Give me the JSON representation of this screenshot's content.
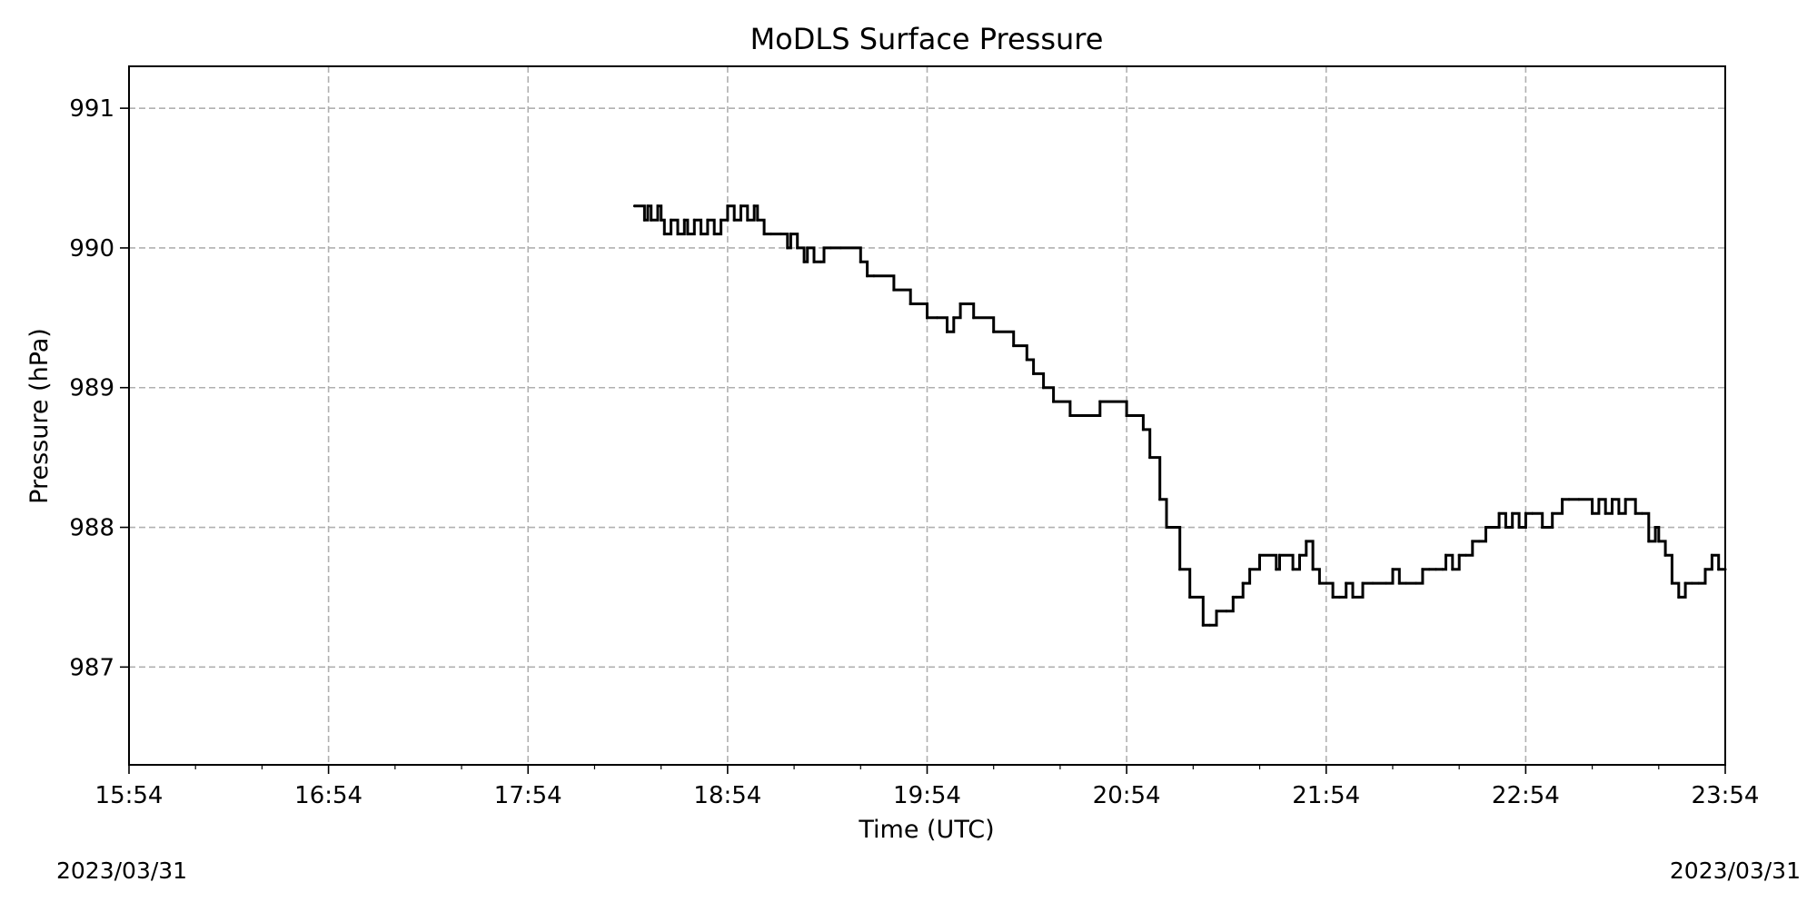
{
  "chart_data": {
    "type": "line",
    "title": "MoDLS Surface Pressure",
    "xlabel": "Time (UTC)",
    "ylabel": "Pressure (hPa)",
    "x_ticks": [
      "15:54",
      "16:54",
      "17:54",
      "18:54",
      "19:54",
      "20:54",
      "21:54",
      "22:54",
      "23:54"
    ],
    "y_ticks": [
      987,
      988,
      989,
      990,
      991
    ],
    "date_left": "2023/03/31",
    "date_right": "2023/03/31",
    "xlim_minutes_after_1554": [
      0,
      480
    ],
    "ylim": [
      986.3,
      991.3
    ],
    "grid": true,
    "line_color": "#000000",
    "grid_color": "#b0b0b0",
    "series": [
      {
        "step": "post",
        "x_minutes_after_1554": [
          152,
          155,
          156,
          157,
          159,
          160,
          161,
          163,
          165,
          167,
          168,
          170,
          172,
          174,
          176,
          178,
          180,
          182,
          184,
          186,
          188,
          189,
          191,
          193,
          196,
          198,
          199,
          201,
          203,
          204,
          206,
          208,
          209,
          211,
          214,
          220,
          222,
          224,
          230,
          235,
          240,
          243,
          246,
          248,
          250,
          254,
          260,
          266,
          270,
          272,
          275,
          278,
          283,
          286,
          292,
          300,
          305,
          307,
          310,
          312,
          316,
          319,
          323,
          325,
          327,
          330,
          332,
          333,
          335,
          337,
          340,
          345,
          346,
          350,
          352,
          354,
          356,
          358,
          360,
          362,
          364,
          366,
          368,
          371,
          374,
          378,
          380,
          382,
          384,
          387,
          389,
          391,
          393,
          395,
          396,
          398,
          400,
          402,
          404,
          406,
          408,
          410,
          412,
          414,
          416,
          418,
          420,
          422,
          425,
          428,
          431,
          433,
          436,
          440,
          442,
          444,
          446,
          448,
          450,
          453,
          455,
          457,
          459,
          460,
          462,
          464,
          466,
          468,
          470,
          472,
          474,
          476,
          478,
          480
        ],
        "y_pressure_hpa": [
          990.3,
          990.2,
          990.3,
          990.2,
          990.3,
          990.2,
          990.1,
          990.2,
          990.1,
          990.2,
          990.1,
          990.2,
          990.1,
          990.2,
          990.1,
          990.2,
          990.3,
          990.2,
          990.3,
          990.2,
          990.3,
          990.2,
          990.1,
          990.1,
          990.1,
          990.0,
          990.1,
          990.0,
          989.9,
          990.0,
          989.9,
          989.9,
          990.0,
          990.0,
          990.0,
          989.9,
          989.8,
          989.8,
          989.7,
          989.6,
          989.5,
          989.5,
          989.4,
          989.5,
          989.6,
          989.5,
          989.4,
          989.3,
          989.2,
          989.1,
          989.0,
          988.9,
          988.8,
          988.8,
          988.9,
          988.8,
          988.7,
          988.5,
          988.2,
          988.0,
          987.7,
          987.5,
          987.3,
          987.3,
          987.4,
          987.4,
          987.5,
          987.5,
          987.6,
          987.7,
          987.8,
          987.7,
          987.8,
          987.7,
          987.8,
          987.9,
          987.7,
          987.6,
          987.6,
          987.5,
          987.5,
          987.6,
          987.5,
          987.6,
          987.6,
          987.6,
          987.7,
          987.6,
          987.6,
          987.6,
          987.7,
          987.7,
          987.7,
          987.7,
          987.8,
          987.7,
          987.8,
          987.8,
          987.9,
          987.9,
          988.0,
          988.0,
          988.1,
          988.0,
          988.1,
          988.0,
          988.1,
          988.1,
          988.0,
          988.1,
          988.2,
          988.2,
          988.2,
          988.1,
          988.2,
          988.1,
          988.2,
          988.1,
          988.2,
          988.1,
          988.1,
          987.9,
          988.0,
          987.9,
          987.8,
          987.6,
          987.5,
          987.6,
          987.6,
          987.6,
          987.7,
          987.8,
          987.7,
          987.7
        ]
      }
    ]
  }
}
